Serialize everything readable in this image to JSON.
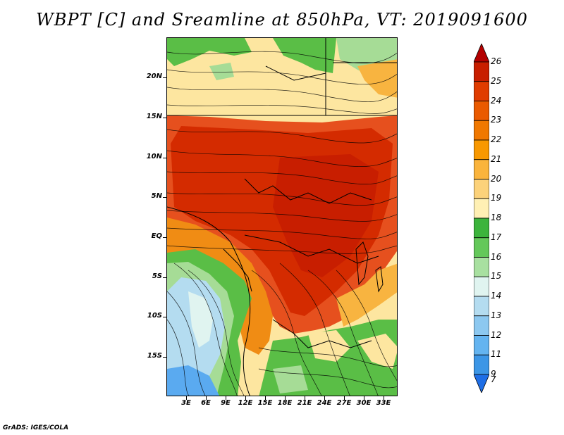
{
  "title": "WBPT [C] and Sreamline at 850hPa, VT: 2019091600",
  "credit": "GrADS: IGES/COLA",
  "map": {
    "lat_labels": [
      "20N",
      "15N",
      "10N",
      "5N",
      "EQ",
      "5S",
      "10S",
      "15S"
    ],
    "lat_values": [
      20,
      15,
      10,
      5,
      0,
      -5,
      -10,
      -15
    ],
    "lon_labels": [
      "3E",
      "6E",
      "9E",
      "12E",
      "15E",
      "18E",
      "21E",
      "24E",
      "27E",
      "30E",
      "33E"
    ],
    "lon_values": [
      3,
      6,
      9,
      12,
      15,
      18,
      21,
      24,
      27,
      30,
      33
    ],
    "lon_range": [
      0,
      35
    ],
    "lat_range": [
      -20,
      25
    ]
  },
  "colorbar": {
    "labels": [
      "26",
      "25",
      "24",
      "23",
      "22",
      "21",
      "20",
      "19",
      "18",
      "17",
      "16",
      "15",
      "14",
      "13",
      "12",
      "11",
      "9",
      "7"
    ],
    "colors": [
      "#b40000",
      "#c81e00",
      "#e03c00",
      "#ea5a00",
      "#f07800",
      "#f89800",
      "#fab43c",
      "#fcd27a",
      "#fff0b4",
      "#3cb43c",
      "#64c85a",
      "#a8e0a0",
      "#e0f4f0",
      "#b4dcf0",
      "#8cc8f0",
      "#64b4f0",
      "#3c96e6",
      "#1e6ee6"
    ]
  },
  "colors": {
    "red": "#d42b00",
    "orange_red": "#e6501e",
    "orange": "#f08c14",
    "light_orange": "#f8b440",
    "pale_yellow": "#fde6a0",
    "green": "#5abe46",
    "light_green": "#a6dc96",
    "light_blue": "#b4dcf0",
    "blue": "#5aaaf0"
  }
}
